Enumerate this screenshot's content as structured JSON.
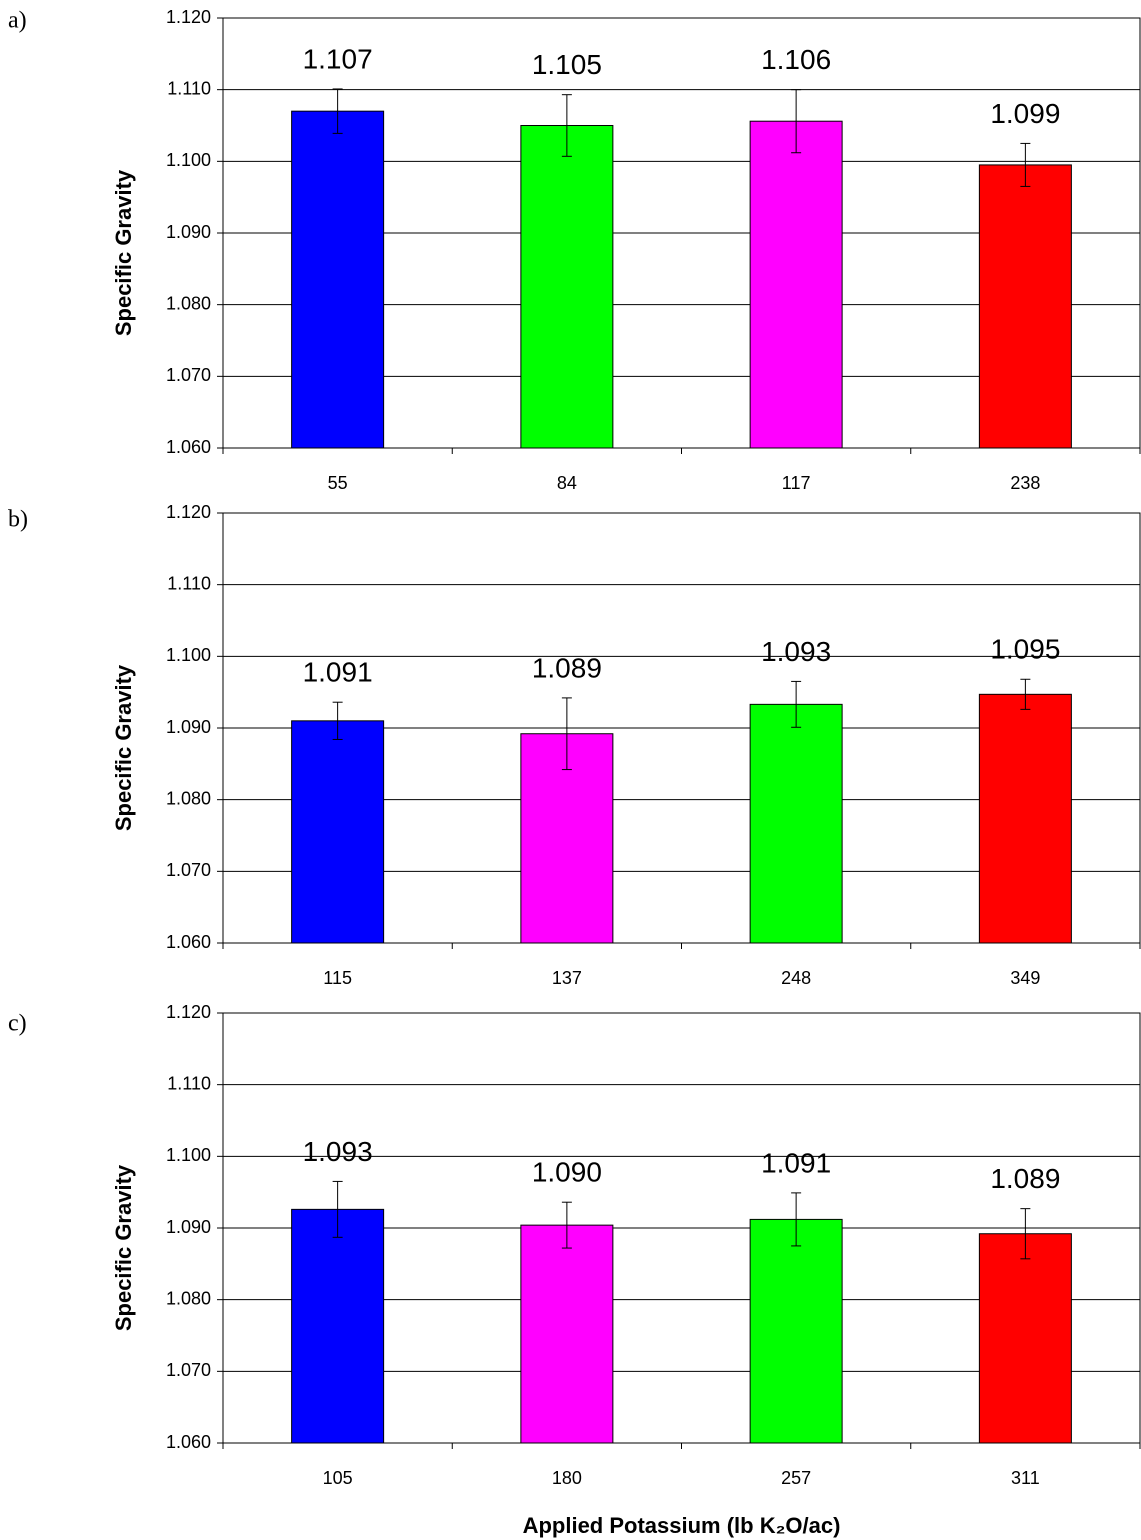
{
  "chart_data": [
    {
      "type": "bar",
      "label": "a)",
      "ylabel": "Specific Gravity",
      "categories": [
        "55",
        "84",
        "117",
        "238"
      ],
      "values": [
        1.107,
        1.105,
        1.1056,
        1.0995
      ],
      "value_labels": [
        "1.107",
        "1.105",
        "1.106",
        "1.099"
      ],
      "errors": [
        0.0031,
        0.0043,
        0.0044,
        0.003
      ],
      "colors": [
        "#0000ff",
        "#00ff00",
        "#ff00ff",
        "#ff0000"
      ],
      "ylim": [
        1.06,
        1.12
      ],
      "yticks": [
        {
          "value": 1.06,
          "label": "1.060"
        },
        {
          "value": 1.07,
          "label": "1.070"
        },
        {
          "value": 1.08,
          "label": "1.080"
        },
        {
          "value": 1.09,
          "label": "1.090"
        },
        {
          "value": 1.1,
          "label": "1.100"
        },
        {
          "value": 1.11,
          "label": "1.110"
        },
        {
          "value": 1.12,
          "label": "1.120"
        }
      ],
      "grid": true
    },
    {
      "type": "bar",
      "label": "b)",
      "ylabel": "Specific Gravity",
      "categories": [
        "115",
        "137",
        "248",
        "349"
      ],
      "values": [
        1.091,
        1.0892,
        1.0933,
        1.0947
      ],
      "value_labels": [
        "1.091",
        "1.089",
        "1.093",
        "1.095"
      ],
      "errors": [
        0.0026,
        0.005,
        0.0032,
        0.0021
      ],
      "colors": [
        "#0000ff",
        "#ff00ff",
        "#00ff00",
        "#ff0000"
      ],
      "ylim": [
        1.06,
        1.12
      ],
      "yticks": [
        {
          "value": 1.06,
          "label": "1.060"
        },
        {
          "value": 1.07,
          "label": "1.070"
        },
        {
          "value": 1.08,
          "label": "1.080"
        },
        {
          "value": 1.09,
          "label": "1.090"
        },
        {
          "value": 1.1,
          "label": "1.100"
        },
        {
          "value": 1.11,
          "label": "1.110"
        },
        {
          "value": 1.12,
          "label": "1.120"
        }
      ],
      "grid": true
    },
    {
      "type": "bar",
      "label": "c)",
      "ylabel": "Specific Gravity",
      "xlabel": "Applied Potassium (lb K₂O/ac)",
      "categories": [
        "105",
        "180",
        "257",
        "311"
      ],
      "values": [
        1.0926,
        1.0904,
        1.0912,
        1.0892
      ],
      "value_labels": [
        "1.093",
        "1.090",
        "1.091",
        "1.089"
      ],
      "errors": [
        0.0039,
        0.0032,
        0.0037,
        0.0035
      ],
      "colors": [
        "#0000ff",
        "#ff00ff",
        "#00ff00",
        "#ff0000"
      ],
      "ylim": [
        1.06,
        1.12
      ],
      "yticks": [
        {
          "value": 1.06,
          "label": "1.060"
        },
        {
          "value": 1.07,
          "label": "1.070"
        },
        {
          "value": 1.08,
          "label": "1.080"
        },
        {
          "value": 1.09,
          "label": "1.090"
        },
        {
          "value": 1.1,
          "label": "1.100"
        },
        {
          "value": 1.11,
          "label": "1.110"
        },
        {
          "value": 1.12,
          "label": "1.120"
        }
      ],
      "grid": true
    }
  ]
}
